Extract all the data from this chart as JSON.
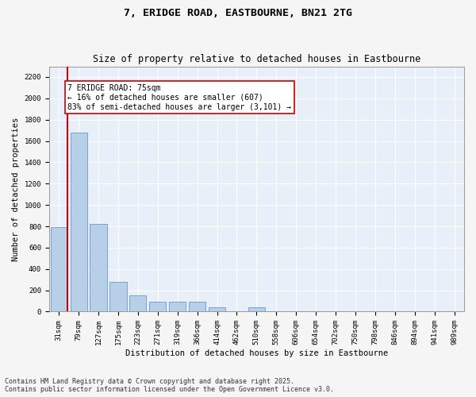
{
  "title_line1": "7, ERIDGE ROAD, EASTBOURNE, BN21 2TG",
  "title_line2": "Size of property relative to detached houses in Eastbourne",
  "xlabel": "Distribution of detached houses by size in Eastbourne",
  "ylabel": "Number of detached properties",
  "categories": [
    "31sqm",
    "79sqm",
    "127sqm",
    "175sqm",
    "223sqm",
    "271sqm",
    "319sqm",
    "366sqm",
    "414sqm",
    "462sqm",
    "510sqm",
    "558sqm",
    "606sqm",
    "654sqm",
    "702sqm",
    "750sqm",
    "798sqm",
    "846sqm",
    "894sqm",
    "941sqm",
    "989sqm"
  ],
  "values": [
    790,
    1680,
    820,
    280,
    150,
    90,
    90,
    90,
    40,
    0,
    40,
    0,
    0,
    0,
    0,
    0,
    0,
    0,
    0,
    0,
    0
  ],
  "bar_color": "#b8cfe8",
  "bar_edge_color": "#6699cc",
  "background_color": "#e8eff8",
  "grid_color": "#ffffff",
  "annotation_text": "7 ERIDGE ROAD: 75sqm\n← 16% of detached houses are smaller (607)\n83% of semi-detached houses are larger (3,101) →",
  "annotation_box_color": "#ffffff",
  "annotation_box_edge_color": "#cc0000",
  "vline_color": "#cc0000",
  "ylim": [
    0,
    2300
  ],
  "yticks": [
    0,
    200,
    400,
    600,
    800,
    1000,
    1200,
    1400,
    1600,
    1800,
    2000,
    2200
  ],
  "footer_line1": "Contains HM Land Registry data © Crown copyright and database right 2025.",
  "footer_line2": "Contains public sector information licensed under the Open Government Licence v3.0.",
  "title_fontsize": 9.5,
  "subtitle_fontsize": 8.5,
  "axis_label_fontsize": 7.5,
  "tick_fontsize": 6.5,
  "annotation_fontsize": 7,
  "footer_fontsize": 6
}
